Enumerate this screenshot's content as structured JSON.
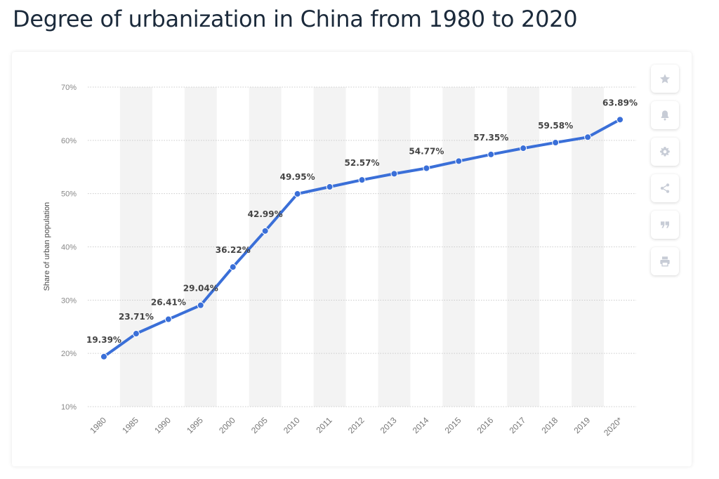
{
  "header": {
    "title": "Degree of urbanization in China from 1980 to 2020"
  },
  "toolbar": {
    "buttons": [
      "star-icon",
      "bell-icon",
      "gear-icon",
      "share-icon",
      "quote-icon",
      "print-icon"
    ]
  },
  "colors": {
    "line": "#3a6fd8",
    "band": "#f3f3f3",
    "grid": "#cccccc",
    "title": "#1b2a3b"
  },
  "chart_data": {
    "type": "line",
    "ylabel": "Share of urban population",
    "xlabel": "",
    "ylim": [
      10,
      70
    ],
    "y_ticks": [
      "10%",
      "20%",
      "30%",
      "40%",
      "50%",
      "60%",
      "70%"
    ],
    "grid": true,
    "categories": [
      "1980",
      "1985",
      "1990",
      "1995",
      "2000",
      "2005",
      "2010",
      "2011",
      "2012",
      "2013",
      "2014",
      "2015",
      "2016",
      "2017",
      "2018",
      "2019",
      "2020*"
    ],
    "values": [
      19.39,
      23.71,
      26.41,
      29.04,
      36.22,
      42.99,
      49.95,
      51.27,
      52.57,
      53.73,
      54.77,
      56.1,
      57.35,
      58.52,
      59.58,
      60.6,
      63.89
    ],
    "data_labels": [
      "19.39%",
      "23.71%",
      "26.41%",
      "29.04%",
      "36.22%",
      "42.99%",
      "49.95%",
      "",
      "52.57%",
      "",
      "54.77%",
      "",
      "57.35%",
      "",
      "59.58%",
      "",
      "63.89%"
    ]
  }
}
